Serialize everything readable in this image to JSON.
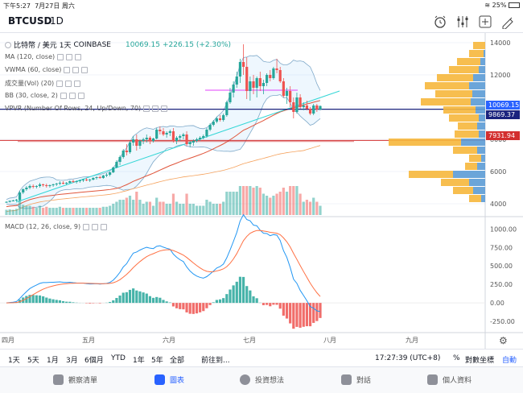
{
  "status": {
    "time": "下午5:27",
    "date": "7月27日 周六",
    "battery": "25%"
  },
  "header": {
    "symbol": "BTCUSD",
    "interval": "1D"
  },
  "legend": {
    "title_name": "比特幣 / 美元",
    "title_interval": "1天",
    "title_exchange": "COINBASE",
    "title_price": "10069.15",
    "title_change": "+226.15 (+2.30%)",
    "ma": "MA (120, close)",
    "vwma": "VWMA (60, close)",
    "vol": "成交量(Vol) (20)",
    "bb": "BB (30, close, 2)",
    "vpvr": "VPVR (Number Of Rows, 24, Up/Down, 70)",
    "macd": "MACD (12, 26, close, 9)"
  },
  "price_tags": {
    "last": "10069.15",
    "level_blue": "9869.37",
    "level_red": "7931.94"
  },
  "range_bar": {
    "items": [
      "1天",
      "5天",
      "1月",
      "3月",
      "6個月",
      "YTD",
      "1年",
      "5年",
      "全部",
      "前往到..."
    ],
    "time": "17:27:39 (UTC+8)",
    "pct": "%",
    "log": "對數坐標",
    "auto": "自動"
  },
  "tabs": [
    {
      "label": "觀察清單",
      "icon": "list-icon"
    },
    {
      "label": "圖表",
      "icon": "chart-icon"
    },
    {
      "label": "投資想法",
      "icon": "lightbulb-icon"
    },
    {
      "label": "對話",
      "icon": "chat-icon"
    },
    {
      "label": "個人資料",
      "icon": "profile-icon"
    }
  ],
  "chart_data": [
    {
      "type": "candlestick",
      "title": "比特幣 / 美元 1天 COINBASE",
      "y_ticks": [
        4000,
        6000,
        8000,
        10000,
        12000,
        14000
      ],
      "ylim": [
        3300,
        14600
      ],
      "x_ticks": [
        "四月",
        "五月",
        "六月",
        "七月",
        "八月",
        "九月"
      ],
      "candles": [
        [
          4100,
          4150,
          4050,
          4120
        ],
        [
          4120,
          4200,
          4080,
          4180
        ],
        [
          4180,
          4250,
          4150,
          4200
        ],
        [
          4200,
          4300,
          4150,
          4250
        ],
        [
          4250,
          4800,
          4200,
          4700
        ],
        [
          4700,
          4950,
          4600,
          4900
        ],
        [
          4900,
          5100,
          4800,
          5000
        ],
        [
          5000,
          5200,
          4900,
          5100
        ],
        [
          5100,
          5200,
          4950,
          5050
        ],
        [
          5050,
          5150,
          4950,
          5100
        ],
        [
          5100,
          5300,
          5000,
          5200
        ],
        [
          5200,
          5250,
          5050,
          5150
        ],
        [
          5150,
          5250,
          5000,
          5100
        ],
        [
          5100,
          5200,
          5000,
          5150
        ],
        [
          5150,
          5250,
          5050,
          5200
        ],
        [
          5200,
          5300,
          5100,
          5250
        ],
        [
          5250,
          5400,
          5150,
          5300
        ],
        [
          5300,
          5400,
          5200,
          5250
        ],
        [
          5250,
          5350,
          5150,
          5300
        ],
        [
          5300,
          5450,
          5250,
          5400
        ],
        [
          5400,
          5500,
          5300,
          5350
        ],
        [
          5350,
          5450,
          5250,
          5400
        ],
        [
          5400,
          5500,
          5300,
          5450
        ],
        [
          5450,
          5550,
          5350,
          5500
        ],
        [
          5500,
          5600,
          5400,
          5450
        ],
        [
          5450,
          5550,
          5350,
          5500
        ],
        [
          5500,
          5650,
          5450,
          5600
        ],
        [
          5600,
          5700,
          5500,
          5650
        ],
        [
          5650,
          5750,
          5550,
          5600
        ],
        [
          5600,
          5800,
          5550,
          5750
        ],
        [
          5750,
          5900,
          5650,
          5800
        ],
        [
          5800,
          6000,
          5700,
          5950
        ],
        [
          5950,
          6300,
          5900,
          6250
        ],
        [
          6250,
          6700,
          6200,
          6600
        ],
        [
          6600,
          7000,
          6400,
          6900
        ],
        [
          6900,
          7400,
          6800,
          7300
        ],
        [
          7300,
          7700,
          7000,
          7200
        ],
        [
          7200,
          7900,
          7100,
          7800
        ],
        [
          7800,
          8200,
          7600,
          8000
        ],
        [
          8000,
          8300,
          7300,
          7600
        ],
        [
          7600,
          8000,
          7400,
          7900
        ],
        [
          7900,
          8100,
          7700,
          8000
        ],
        [
          8000,
          8300,
          7800,
          8100
        ],
        [
          8100,
          8200,
          7700,
          7900
        ],
        [
          7900,
          8100,
          7800,
          8050
        ],
        [
          8050,
          8700,
          8000,
          8600
        ],
        [
          8600,
          8800,
          8300,
          8500
        ],
        [
          8500,
          8700,
          8200,
          8300
        ],
        [
          8300,
          8500,
          8100,
          8400
        ],
        [
          8400,
          8600,
          8200,
          8500
        ],
        [
          8500,
          8700,
          7800,
          7900
        ],
        [
          7900,
          8200,
          7700,
          8100
        ],
        [
          8100,
          8300,
          7900,
          8200
        ],
        [
          8200,
          8400,
          8000,
          8300
        ],
        [
          8300,
          8500,
          7600,
          7700
        ],
        [
          7700,
          7900,
          7500,
          7800
        ],
        [
          7800,
          8000,
          7600,
          7900
        ],
        [
          7900,
          8100,
          7800,
          8000
        ],
        [
          8000,
          8200,
          7900,
          8100
        ],
        [
          8100,
          8300,
          8000,
          8200
        ],
        [
          8200,
          8700,
          8100,
          8600
        ],
        [
          8600,
          9000,
          8500,
          8900
        ],
        [
          8900,
          9200,
          8800,
          9100
        ],
        [
          9100,
          9400,
          9000,
          9300
        ],
        [
          9300,
          9500,
          9100,
          9200
        ],
        [
          9200,
          9600,
          9100,
          9500
        ],
        [
          9500,
          10400,
          9400,
          10300
        ],
        [
          10300,
          11200,
          10200,
          10900
        ],
        [
          10900,
          11600,
          10600,
          11400
        ],
        [
          11400,
          12200,
          11200,
          11900
        ],
        [
          11900,
          13000,
          11500,
          12800
        ],
        [
          12800,
          13900,
          12000,
          12500
        ],
        [
          12500,
          13100,
          10500,
          11000
        ],
        [
          11000,
          11900,
          10400,
          11600
        ],
        [
          11600,
          12000,
          10800,
          11200
        ],
        [
          11200,
          11900,
          10600,
          11800
        ],
        [
          11800,
          12200,
          11000,
          11300
        ],
        [
          11300,
          11700,
          10800,
          11500
        ],
        [
          11500,
          12100,
          11300,
          12000
        ],
        [
          12000,
          12300,
          11600,
          11800
        ],
        [
          11800,
          12500,
          11700,
          12400
        ],
        [
          12400,
          13000,
          12100,
          12300
        ],
        [
          12300,
          12500,
          11500,
          11600
        ],
        [
          11600,
          11800,
          10600,
          10700
        ],
        [
          10700,
          11200,
          10200,
          11000
        ],
        [
          11000,
          11300,
          10000,
          10300
        ],
        [
          10300,
          10600,
          9300,
          9700
        ],
        [
          9700,
          10900,
          9600,
          10600
        ],
        [
          10600,
          10800,
          9900,
          10000
        ],
        [
          10000,
          10300,
          9800,
          10100
        ],
        [
          10100,
          10400,
          9800,
          9900
        ],
        [
          9900,
          10000,
          9500,
          9600
        ],
        [
          9600,
          10200,
          9500,
          10100
        ],
        [
          10100,
          10200,
          9700,
          9850
        ],
        [
          9850,
          10100,
          9800,
          10069
        ]
      ],
      "indicators": [
        "MA (120, close)",
        "VWMA (60, close)",
        "BB (30, close, 2)",
        "VPVR (Number Of Rows, 24, Up/Down, 70)",
        "成交量(Vol) (20)"
      ]
    },
    {
      "type": "macd",
      "title": "MACD (12, 26, close, 9)",
      "y_ticks": [
        -250,
        0,
        250,
        500,
        750,
        1000
      ],
      "ylim": [
        -380,
        1080
      ]
    }
  ]
}
